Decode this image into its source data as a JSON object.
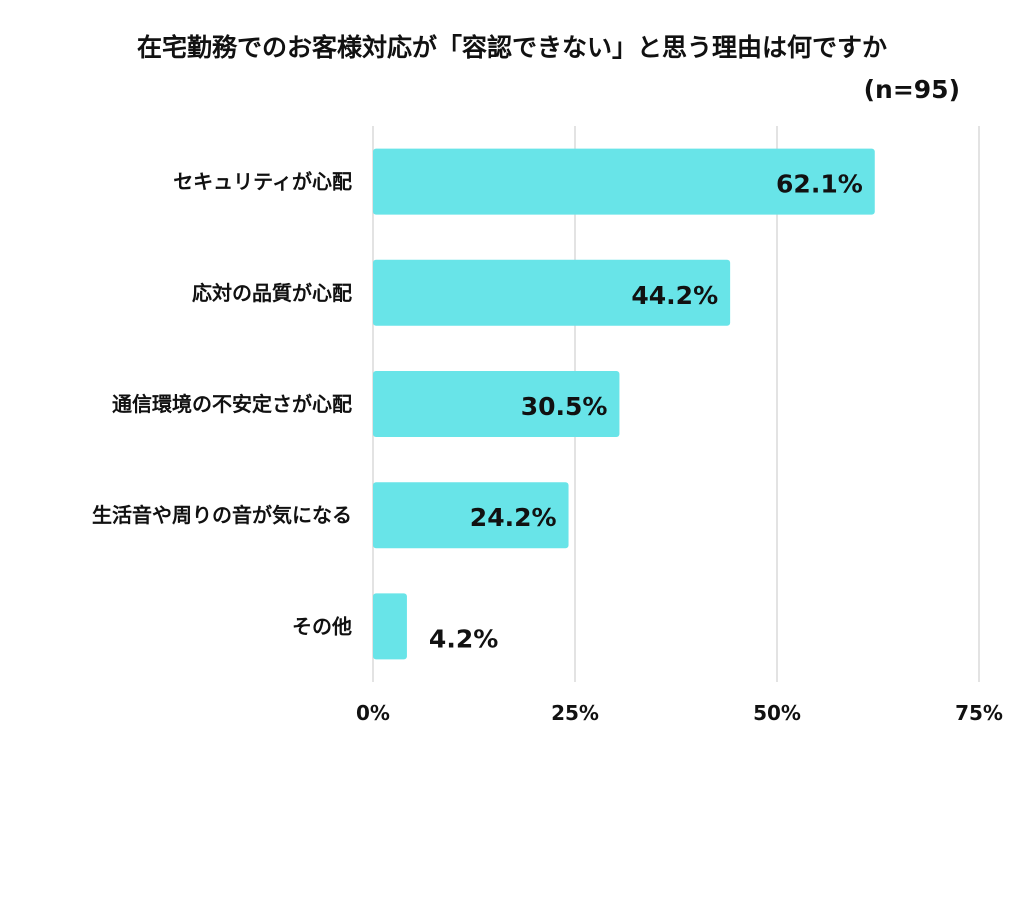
{
  "chart_data": {
    "type": "bar",
    "orientation": "horizontal",
    "title": "在宅勤務でのお客様対応が「容認できない」と思う理由は何ですか",
    "subtitle": "(n=95)",
    "categories": [
      "セキュリティが心配",
      "応対の品質が心配",
      "通信環境の不安定さが心配",
      "生活音や周りの音が気になる",
      "その他"
    ],
    "values": [
      62.1,
      44.2,
      30.5,
      24.2,
      4.2
    ],
    "value_labels": [
      "62.1%",
      "44.2%",
      "30.5%",
      "24.2%",
      "4.2%"
    ],
    "xlim": [
      0,
      75
    ],
    "xticks": [
      0,
      25,
      50,
      75
    ],
    "xtick_labels": [
      "0%",
      "25%",
      "50%",
      "75%"
    ],
    "grid": true,
    "bar_color": "#68E4E8",
    "grid_color": "#d4d4d4"
  }
}
